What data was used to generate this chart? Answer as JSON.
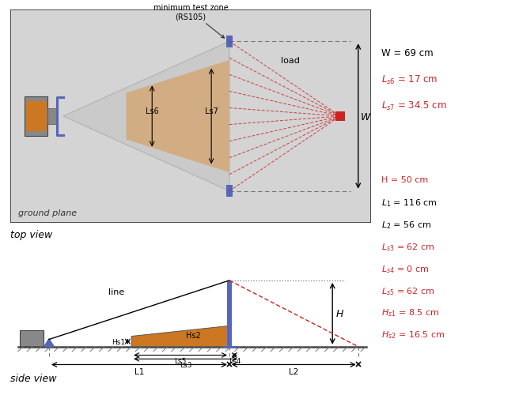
{
  "top_view": {
    "bg_color": "#d4d4d4",
    "antenna_orange": "#cc7722",
    "antenna_gray": "#888888",
    "bracket_color": "#5566bb",
    "cone_color": "#c0c0c0",
    "test_zone_color": "#d4a97a",
    "separator_color": "#5566bb",
    "load_color": "#cc2222",
    "red_lines_color": "#cc2222",
    "ground_plane_text": "ground plane",
    "min_test_zone_text": "minimum test zone\n(RS105)",
    "load_text": "load",
    "Ls6_text": "Ls6",
    "Ls7_text": "Ls7",
    "W_text": "W",
    "params_text": [
      "W = 69 cm",
      "Ls6 = 17 cm",
      "Ls7 = 34.5 cm"
    ],
    "params_colors": [
      "black",
      "#cc2222",
      "#cc2222"
    ]
  },
  "side_view": {
    "ground_color": "#555555",
    "antenna_color": "#777777",
    "bracket_color": "#5566bb",
    "mast_color": "#5566bb",
    "eut_color": "#cc7722",
    "load_color": "#cc2222",
    "line_label": "line",
    "H_text": "H",
    "params_text": [
      "H = 50 cm",
      "L1 = 116 cm",
      "L2 = 56 cm",
      "Ls3 = 62 cm",
      "Ls4 = 0 cm",
      "Ls5 = 62 cm",
      "Hs1 = 8.5 cm",
      "Hs2 = 16.5 cm"
    ],
    "params_colors": [
      "#cc2222",
      "black",
      "black",
      "#cc2222",
      "#cc2222",
      "#cc2222",
      "#cc2222",
      "#cc2222"
    ]
  },
  "top_view_label": "top view",
  "side_view_label": "side view"
}
